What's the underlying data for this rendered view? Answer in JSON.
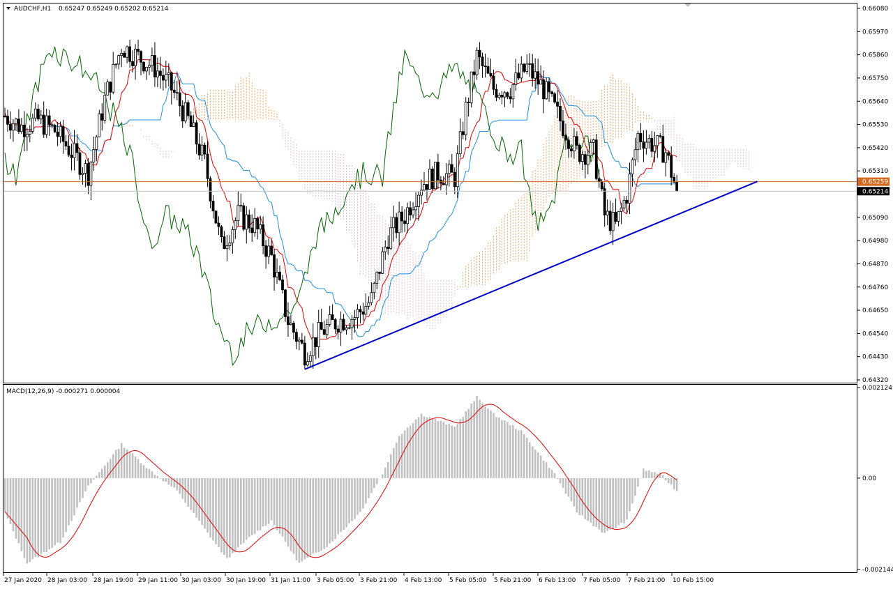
{
  "header": {
    "symbol": "AUDCHF,H1",
    "ohlc": "0.65247 0.65249 0.65202 0.65214"
  },
  "price_axis": {
    "labels": [
      "0.66080",
      "0.65970",
      "0.65860",
      "0.65750",
      "0.65640",
      "0.65530",
      "0.65420",
      "0.65310",
      "0.65090",
      "0.64980",
      "0.64870",
      "0.64760",
      "0.64650",
      "0.64540",
      "0.64430",
      "0.64320"
    ],
    "bid_tag": "0.65259",
    "last_tag": "0.65214"
  },
  "macd": {
    "title": "MACD(12,26,9) -0.000271 0.000004",
    "labels": [
      "0.002124",
      "0.00",
      "-0.002144"
    ]
  },
  "time_axis": {
    "labels": [
      "27 Jan 2020",
      "28 Jan 03:00",
      "28 Jan 19:00",
      "29 Jan 11:00",
      "30 Jan 03:00",
      "30 Jan 19:00",
      "31 Jan 11:00",
      "3 Feb 05:00",
      "3 Feb 21:00",
      "4 Feb 13:00",
      "5 Feb 05:00",
      "5 Feb 21:00",
      "6 Feb 13:00",
      "7 Feb 05:00",
      "7 Feb 21:00",
      "10 Feb 15:00"
    ]
  },
  "colors": {
    "candle": "#000000",
    "tenkan": "#e00000",
    "kijun": "#1e8fe0",
    "chikou": "#006400",
    "kumo_bull": "#f4a460",
    "kumo_bear": "#d8bfd8",
    "trendline": "#0000cd",
    "bid_line": "#d2691e",
    "macd_hist": "#c0c0c0",
    "macd_signal": "#e00000"
  },
  "chart_data": {
    "type": "candlestick",
    "symbol": "AUDCHF",
    "timeframe": "H1",
    "y_range": [
      0.6432,
      0.6608
    ],
    "indicators": [
      "Ichimoku Kinko Hyo",
      "MACD(12,26,9)"
    ],
    "price_path_anchors": [
      {
        "bar": 0,
        "close": 0.6557
      },
      {
        "bar": 6,
        "close": 0.6552
      },
      {
        "bar": 12,
        "close": 0.6555
      },
      {
        "bar": 18,
        "close": 0.655
      },
      {
        "bar": 24,
        "close": 0.654
      },
      {
        "bar": 30,
        "close": 0.653
      },
      {
        "bar": 36,
        "close": 0.6565
      },
      {
        "bar": 42,
        "close": 0.659
      },
      {
        "bar": 48,
        "close": 0.6585
      },
      {
        "bar": 54,
        "close": 0.658
      },
      {
        "bar": 60,
        "close": 0.657
      },
      {
        "bar": 66,
        "close": 0.6555
      },
      {
        "bar": 72,
        "close": 0.6535
      },
      {
        "bar": 78,
        "close": 0.6495
      },
      {
        "bar": 84,
        "close": 0.651
      },
      {
        "bar": 90,
        "close": 0.6505
      },
      {
        "bar": 96,
        "close": 0.649
      },
      {
        "bar": 102,
        "close": 0.646
      },
      {
        "bar": 108,
        "close": 0.6445
      },
      {
        "bar": 114,
        "close": 0.6455
      },
      {
        "bar": 120,
        "close": 0.646
      },
      {
        "bar": 126,
        "close": 0.6462
      },
      {
        "bar": 132,
        "close": 0.647
      },
      {
        "bar": 138,
        "close": 0.65
      },
      {
        "bar": 144,
        "close": 0.651
      },
      {
        "bar": 150,
        "close": 0.6525
      },
      {
        "bar": 156,
        "close": 0.653
      },
      {
        "bar": 162,
        "close": 0.6528
      },
      {
        "bar": 166,
        "close": 0.656
      },
      {
        "bar": 170,
        "close": 0.6585
      },
      {
        "bar": 176,
        "close": 0.657
      },
      {
        "bar": 182,
        "close": 0.657
      },
      {
        "bar": 188,
        "close": 0.658
      },
      {
        "bar": 194,
        "close": 0.657
      },
      {
        "bar": 200,
        "close": 0.6555
      },
      {
        "bar": 206,
        "close": 0.654
      },
      {
        "bar": 212,
        "close": 0.654
      },
      {
        "bar": 216,
        "close": 0.651
      },
      {
        "bar": 220,
        "close": 0.6505
      },
      {
        "bar": 224,
        "close": 0.652
      },
      {
        "bar": 228,
        "close": 0.6548
      },
      {
        "bar": 232,
        "close": 0.6545
      },
      {
        "bar": 238,
        "close": 0.654
      },
      {
        "bar": 242,
        "close": 0.6521
      }
    ],
    "trendline": {
      "from": {
        "bar": 108,
        "price": 0.6437
      },
      "to": {
        "bar": 271,
        "price": 0.6526
      }
    },
    "bid_price": 0.65259,
    "last_price": 0.65214,
    "macd_range": [
      -0.002144,
      0.002124
    ],
    "macd_anchors": [
      {
        "bar": 0,
        "value": -0.0008
      },
      {
        "bar": 8,
        "value": -0.002
      },
      {
        "bar": 20,
        "value": -0.0015
      },
      {
        "bar": 30,
        "value": -0.0002
      },
      {
        "bar": 42,
        "value": 0.0008
      },
      {
        "bar": 52,
        "value": 0.0002
      },
      {
        "bar": 62,
        "value": -0.0003
      },
      {
        "bar": 72,
        "value": -0.0012
      },
      {
        "bar": 80,
        "value": -0.0019
      },
      {
        "bar": 88,
        "value": -0.0014
      },
      {
        "bar": 96,
        "value": -0.001
      },
      {
        "bar": 106,
        "value": -0.002
      },
      {
        "bar": 116,
        "value": -0.0016
      },
      {
        "bar": 128,
        "value": -0.0008
      },
      {
        "bar": 136,
        "value": 0.0001
      },
      {
        "bar": 142,
        "value": 0.001
      },
      {
        "bar": 150,
        "value": 0.0015
      },
      {
        "bar": 162,
        "value": 0.0012
      },
      {
        "bar": 170,
        "value": 0.0019
      },
      {
        "bar": 176,
        "value": 0.0015
      },
      {
        "bar": 186,
        "value": 0.0011
      },
      {
        "bar": 198,
        "value": 0.0001
      },
      {
        "bar": 206,
        "value": -0.0008
      },
      {
        "bar": 216,
        "value": -0.0013
      },
      {
        "bar": 224,
        "value": -0.001
      },
      {
        "bar": 230,
        "value": 0.0002
      },
      {
        "bar": 236,
        "value": 0.0001
      },
      {
        "bar": 242,
        "value": -0.0003
      }
    ]
  }
}
